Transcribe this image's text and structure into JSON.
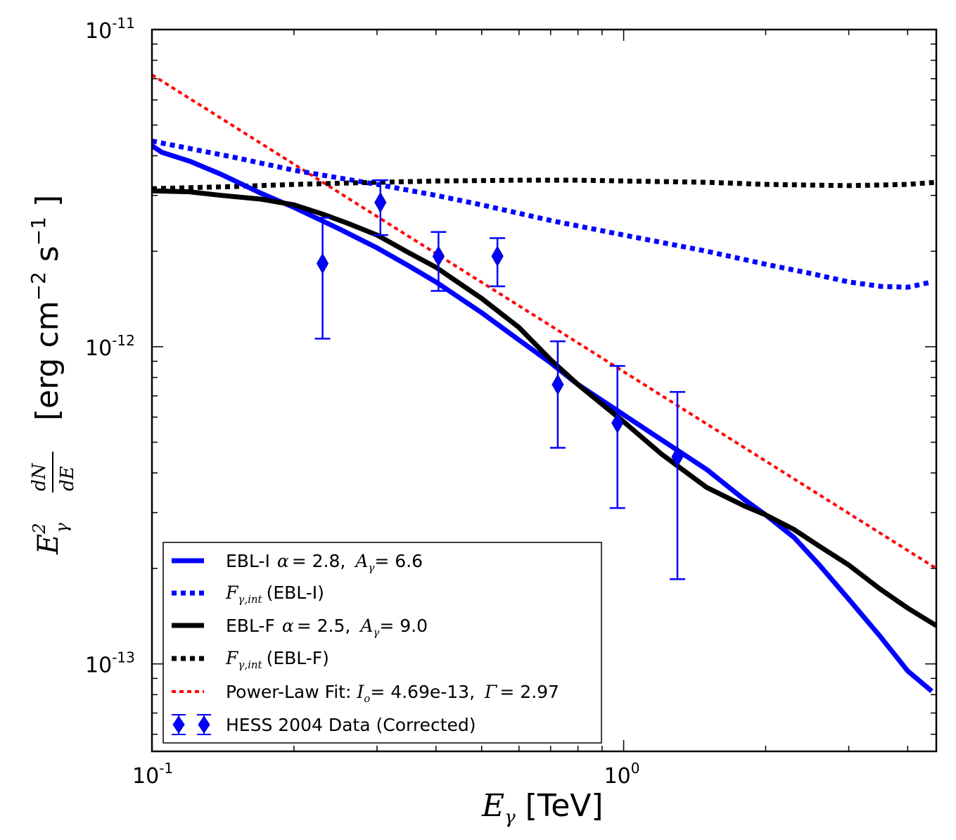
{
  "chart_data": {
    "type": "line",
    "xscale": "log",
    "yscale": "log",
    "xlim": [
      0.1,
      4.6
    ],
    "ylim": [
      5.3e-14,
      1e-11
    ],
    "x_ticks": [
      {
        "value": 0.1,
        "base": "10",
        "exp": "-1"
      },
      {
        "value": 1.0,
        "base": "10",
        "exp": "0"
      }
    ],
    "y_ticks": [
      {
        "value": 1e-11,
        "base": "10",
        "exp": "-11"
      },
      {
        "value": 1e-12,
        "base": "10",
        "exp": "-12"
      },
      {
        "value": 1e-13,
        "base": "10",
        "exp": "-13"
      }
    ],
    "xlabel": {
      "symbol": "E",
      "sub": "γ",
      "text": "[TeV]"
    },
    "ylabel": {
      "symbol": "E",
      "sup": "2",
      "sub": "γ",
      "frac_top": "dN",
      "frac_bottom": "dE",
      "sub_frac": "γ",
      "units": "[erg cm",
      "units_exp1": "−2",
      "units_mid": " s",
      "units_exp2": "−1",
      "units_end": "]"
    },
    "series": [
      {
        "name": "EBL-I",
        "legend": {
          "prefix": "EBL-I",
          "alpha_sym": "α",
          "alpha_val": "= 2.8,",
          "A_sym": "A",
          "A_sub": "γ",
          "A_val": "= 6.6"
        },
        "color": "#0000ff",
        "style": "solid",
        "width": 7,
        "x": [
          0.1,
          0.105,
          0.12,
          0.14,
          0.17,
          0.2,
          0.25,
          0.3,
          0.35,
          0.4,
          0.5,
          0.6,
          0.7,
          0.8,
          1.0,
          1.2,
          1.5,
          1.8,
          2.0,
          2.3,
          2.6,
          3.0,
          3.5,
          4.0,
          4.5
        ],
        "y": [
          4.3e-12,
          4.1e-12,
          3.85e-12,
          3.5e-12,
          3.05e-12,
          2.75e-12,
          2.35e-12,
          2.05e-12,
          1.8e-12,
          1.6e-12,
          1.28e-12,
          1.05e-12,
          8.9e-13,
          7.6e-13,
          6.1e-13,
          5.1e-13,
          4.1e-13,
          3.3e-13,
          2.95e-13,
          2.5e-13,
          2.05e-13,
          1.6e-13,
          1.22e-13,
          9.5e-14,
          8.2e-14
        ]
      },
      {
        "name": "F_gamma_int (EBL-I)",
        "legend": {
          "sym": "F",
          "sub": "γ,int",
          "text": "(EBL-I)"
        },
        "color": "#0000ff",
        "style": "dotted",
        "width": 7,
        "x": [
          0.1,
          0.15,
          0.2,
          0.3,
          0.4,
          0.5,
          0.7,
          1.0,
          1.5,
          2.0,
          2.5,
          3.0,
          3.5,
          4.0,
          4.5
        ],
        "y": [
          4.45e-12,
          3.95e-12,
          3.6e-12,
          3.25e-12,
          3e-12,
          2.8e-12,
          2.5e-12,
          2.25e-12,
          2e-12,
          1.82e-12,
          1.7e-12,
          1.6e-12,
          1.55e-12,
          1.54e-12,
          1.6e-12
        ]
      },
      {
        "name": "EBL-F",
        "legend": {
          "prefix": "EBL-F",
          "alpha_sym": "α",
          "alpha_val": "= 2.5,",
          "A_sym": "A",
          "A_sub": "γ",
          "A_val": "= 9.0"
        },
        "color": "#000000",
        "style": "solid",
        "width": 7,
        "x": [
          0.1,
          0.12,
          0.14,
          0.17,
          0.2,
          0.23,
          0.26,
          0.3,
          0.35,
          0.4,
          0.45,
          0.5,
          0.6,
          0.7,
          0.8,
          1.0,
          1.2,
          1.5,
          1.8,
          2.0,
          2.3,
          2.6,
          3.0,
          3.5,
          4.0,
          4.6
        ],
        "y": [
          3.1e-12,
          3.08e-12,
          3e-12,
          2.92e-12,
          2.8e-12,
          2.62e-12,
          2.45e-12,
          2.25e-12,
          1.98e-12,
          1.78e-12,
          1.58e-12,
          1.42e-12,
          1.15e-12,
          9.1e-13,
          7.6e-13,
          5.8e-13,
          4.6e-13,
          3.6e-13,
          3.15e-13,
          2.95e-13,
          2.65e-13,
          2.35e-13,
          2.05e-13,
          1.72e-13,
          1.5e-13,
          1.32e-13
        ]
      },
      {
        "name": "F_gamma_int (EBL-F)",
        "legend": {
          "sym": "F",
          "sub": "γ,int",
          "text": "(EBL-F)"
        },
        "color": "#000000",
        "style": "dotted",
        "width": 7,
        "x": [
          0.1,
          0.15,
          0.2,
          0.3,
          0.4,
          0.6,
          0.8,
          1.0,
          1.5,
          2.0,
          3.0,
          4.0,
          4.6
        ],
        "y": [
          3.15e-12,
          3.2e-12,
          3.25e-12,
          3.3e-12,
          3.33e-12,
          3.35e-12,
          3.35e-12,
          3.33e-12,
          3.3e-12,
          3.25e-12,
          3.22e-12,
          3.25e-12,
          3.3e-12
        ],
        "clip_to_axes": true
      },
      {
        "name": "Power-Law Fit",
        "legend": {
          "prefix": "Power-Law Fit:",
          "I_sym": "I",
          "I_sub": "o",
          "I_val": "= 4.69e-13,",
          "G_sym": "Γ",
          "G_val": "= 2.97"
        },
        "color": "#ff0000",
        "style": "dotted-thin",
        "width": 4,
        "x": [
          0.1,
          4.6
        ],
        "y": [
          7.2e-12,
          2e-13
        ]
      }
    ],
    "data_points": {
      "name": "HESS 2004 Data (Corrected)",
      "color": "#0000ff",
      "points": [
        {
          "x": 0.23,
          "y": 1.83e-12,
          "ylo": 1.06e-12,
          "yhi": 2.55e-12
        },
        {
          "x": 0.305,
          "y": 2.85e-12,
          "ylo": 2.25e-12,
          "yhi": 3.35e-12
        },
        {
          "x": 0.405,
          "y": 1.93e-12,
          "ylo": 1.5e-12,
          "yhi": 2.3e-12
        },
        {
          "x": 0.54,
          "y": 1.93e-12,
          "ylo": 1.55e-12,
          "yhi": 2.2e-12
        },
        {
          "x": 0.725,
          "y": 7.6e-13,
          "ylo": 4.8e-13,
          "yhi": 1.04e-12
        },
        {
          "x": 0.97,
          "y": 5.75e-13,
          "ylo": 3.1e-13,
          "yhi": 8.7e-13
        },
        {
          "x": 1.3,
          "y": 4.5e-13,
          "ylo": 1.85e-13,
          "yhi": 7.2e-13
        }
      ]
    },
    "legend_position": "lower-left"
  }
}
